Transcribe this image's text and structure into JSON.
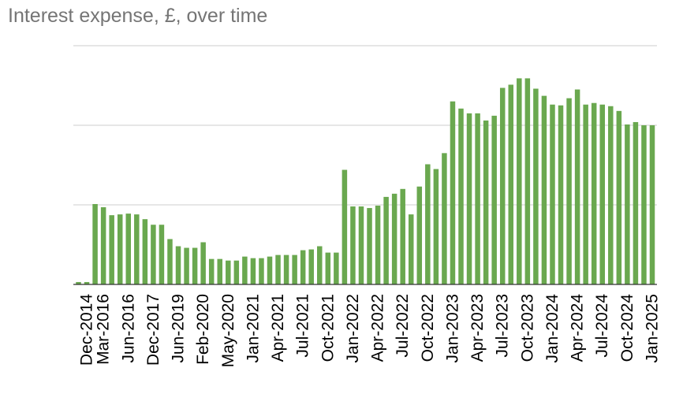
{
  "chart_data": {
    "type": "bar",
    "title": "Interest expense, £, over time",
    "xlabel": "",
    "ylabel": "",
    "ylim": [
      0,
      300
    ],
    "grid": true,
    "y_ticks_shown": false,
    "bar_color": "#6aa84f",
    "gridline_color": "#cccccc",
    "categories": [
      "",
      "Dec-2014",
      "",
      "Mar-2016",
      "",
      "",
      "Jun-2016",
      "",
      "",
      "Dec-2017",
      "",
      "",
      "Jun-2019",
      "",
      "",
      "Feb-2020",
      "",
      "",
      "May-2020",
      "",
      "",
      "Jan-2021",
      "",
      "",
      "Apr-2021",
      "",
      "",
      "Jul-2021",
      "",
      "",
      "Oct-2021",
      "",
      "",
      "Jan-2022",
      "",
      "",
      "Apr-2022",
      "",
      "",
      "Jul-2022",
      "",
      "",
      "Oct-2022",
      "",
      "",
      "Jan-2023",
      "",
      "",
      "Apr-2023",
      "",
      "",
      "Jul-2023",
      "",
      "",
      "Oct-2023",
      "",
      "",
      "Jan-2024",
      "",
      "",
      "Apr-2024",
      "",
      "",
      "Jul-2024",
      "",
      "",
      "Oct-2024",
      "",
      "",
      "Jan-2025"
    ],
    "values": [
      3,
      3,
      101,
      97,
      87,
      88,
      89,
      88,
      82,
      75,
      75,
      57,
      48,
      46,
      46,
      53,
      32,
      32,
      30,
      30,
      35,
      33,
      33,
      35,
      37,
      37,
      37,
      43,
      44,
      48,
      40,
      40,
      144,
      98,
      98,
      96,
      99,
      110,
      114,
      120,
      88,
      123,
      151,
      145,
      165,
      230,
      221,
      215,
      215,
      206,
      212,
      247,
      251,
      259,
      259,
      246,
      237,
      226,
      225,
      234,
      245,
      226,
      228,
      226,
      224,
      218,
      201,
      204,
      200,
      200
    ]
  }
}
